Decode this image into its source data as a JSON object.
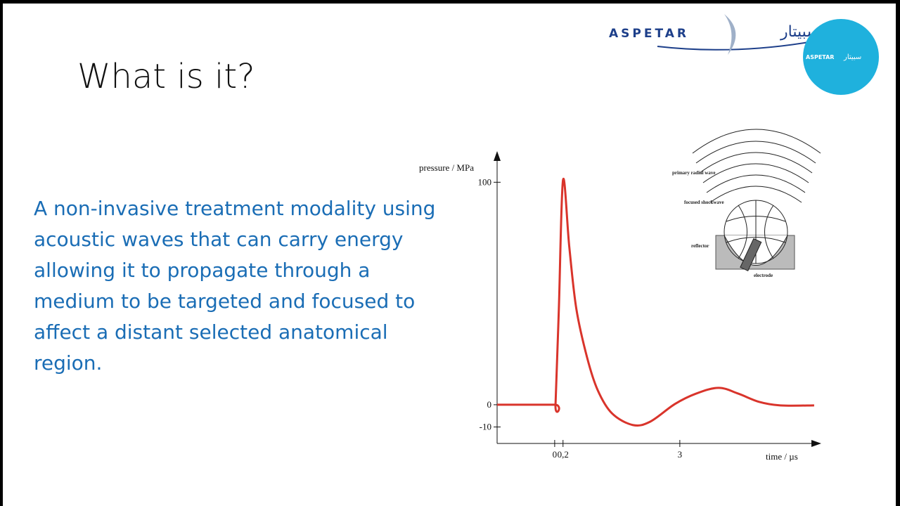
{
  "slide": {
    "title": "What is it?",
    "body": "A non-invasive treatment modality using acoustic waves that can carry energy allowing it to propagate through a medium to be targeted and focused to affect a distant selected anatomical region."
  },
  "logo": {
    "name": "ASPETAR",
    "arabic": "سبيتار"
  },
  "diagram": {
    "labels": [
      "primary radial wave",
      "focused shockwave",
      "reflector",
      "electrode"
    ]
  },
  "chart_data": {
    "type": "line",
    "y_label": "pressure / MPa",
    "x_label": "time / µs",
    "xlim": [
      -1.38,
      6.39
    ],
    "ylim": [
      -17.4,
      114
    ],
    "xticks": [
      0,
      {
        "value": 0.2,
        "label": "0,2"
      },
      3
    ],
    "yticks": [
      -10,
      0,
      100
    ],
    "series": [
      {
        "color": "#d9342b",
        "x": [
          -1.38,
          0,
          0.02,
          0.1,
          0.2,
          0.35,
          0.52,
          0.78,
          1.03,
          1.37,
          1.87,
          2.29,
          2.88,
          3.39,
          3.93,
          4.4,
          4.9,
          5.41,
          6.22
        ],
        "values": [
          0,
          0,
          0,
          43,
          101,
          71,
          43,
          21,
          6.6,
          -3.8,
          -9.1,
          -7.6,
          0.3,
          5,
          7.6,
          5,
          1.3,
          -0.3,
          -0.3
        ]
      }
    ]
  }
}
